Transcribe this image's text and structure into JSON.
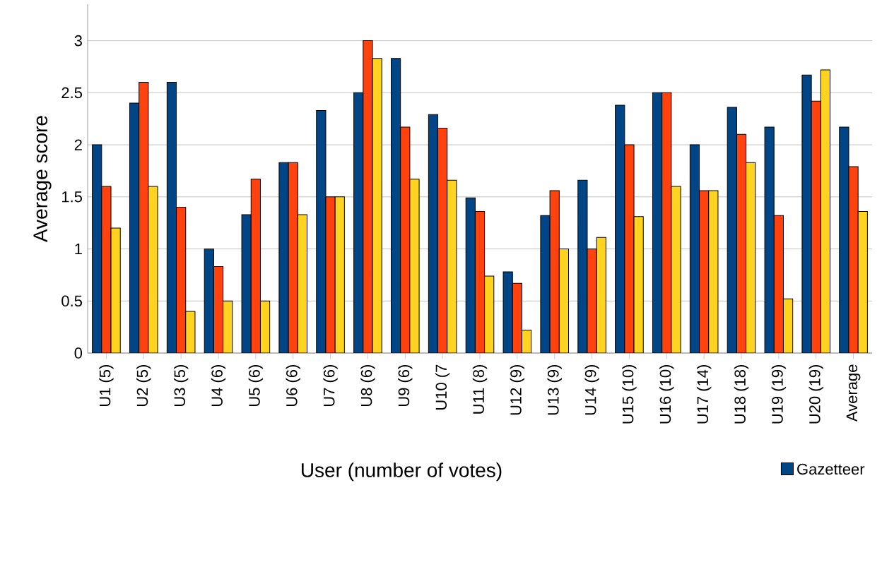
{
  "chart_data": {
    "type": "bar",
    "xlabel": "User (number of votes)",
    "ylabel": "Average score",
    "categories": [
      "U1 (5)",
      "U2 (5)",
      "U3 (5)",
      "U4 (6)",
      "U5 (6)",
      "U6 (6)",
      "U7 (6)",
      "U8 (6)",
      "U9 (6)",
      "U10 (7",
      "U11 (8)",
      "U12 (9)",
      "U13 (9)",
      "U14 (9)",
      "U15 (10)",
      "U16 (10)",
      "U17 (14)",
      "U18 (18)",
      "U19 (19)",
      "U20 (19)",
      "Average"
    ],
    "series": [
      {
        "name": "Gazetteer",
        "color": "#004586",
        "values": [
          2,
          2.4,
          2.6,
          1,
          1.33,
          1.83,
          2.33,
          2.5,
          2.83,
          2.29,
          1.49,
          0.78,
          1.32,
          1.66,
          2.38,
          2.5,
          2,
          2.36,
          2.17,
          2.67,
          2.17
        ]
      },
      {
        "color": "#ff420e",
        "values": [
          1.6,
          2.6,
          1.4,
          0.83,
          1.67,
          1.83,
          1.5,
          3,
          2.17,
          2.16,
          1.36,
          0.67,
          1.56,
          1,
          2,
          2.5,
          1.56,
          2.1,
          1.32,
          2.42,
          1.79
        ]
      },
      {
        "color": "#ffd320",
        "values": [
          1.2,
          1.6,
          0.4,
          0.5,
          0.5,
          1.33,
          1.5,
          2.83,
          1.67,
          1.66,
          0.74,
          0.22,
          1,
          1.11,
          1.31,
          1.6,
          1.56,
          1.83,
          0.52,
          2.72,
          1.36
        ]
      }
    ],
    "ylim": [
      0,
      3.35
    ],
    "yticks": [
      0,
      0.5,
      1,
      1.5,
      2,
      2.5,
      3
    ],
    "grid": "y",
    "legend": "bottom right"
  }
}
